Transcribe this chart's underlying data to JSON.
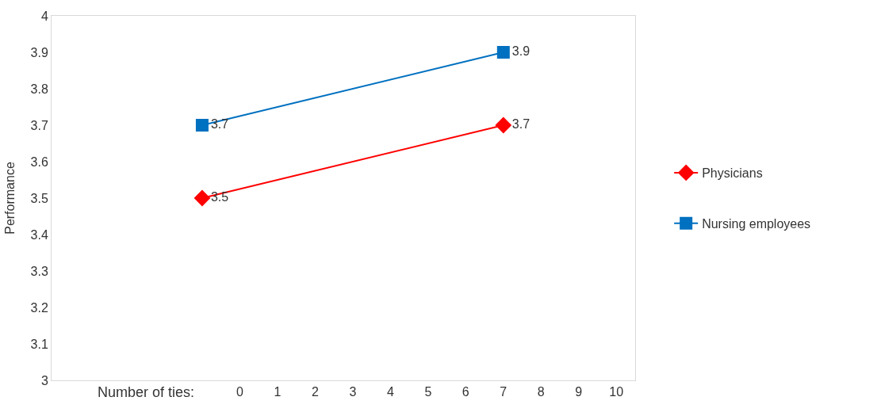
{
  "chart_data": {
    "type": "line",
    "ylabel": "Performance",
    "xlabel": "Number of ties:",
    "x": [
      -1,
      7
    ],
    "series": [
      {
        "name": "Physicians",
        "color": "#ff0000",
        "values": [
          3.5,
          3.7
        ],
        "marker": "diamond"
      },
      {
        "name": "Nursing employees",
        "color": "#0070c0",
        "values": [
          3.7,
          3.9
        ],
        "marker": "square"
      }
    ],
    "xlim": [
      -5,
      10.5
    ],
    "xticks": [
      0,
      1,
      2,
      3,
      4,
      5,
      6,
      7,
      8,
      9,
      10
    ],
    "ylim": [
      3,
      4
    ],
    "yticks": [
      3,
      {
        "value": 3.1,
        "label": "3.1"
      },
      3.2,
      3.3,
      3.4,
      3.5,
      3.6,
      3.7,
      3.8,
      3.9,
      4
    ],
    "data_labels": true,
    "legend": "right"
  }
}
